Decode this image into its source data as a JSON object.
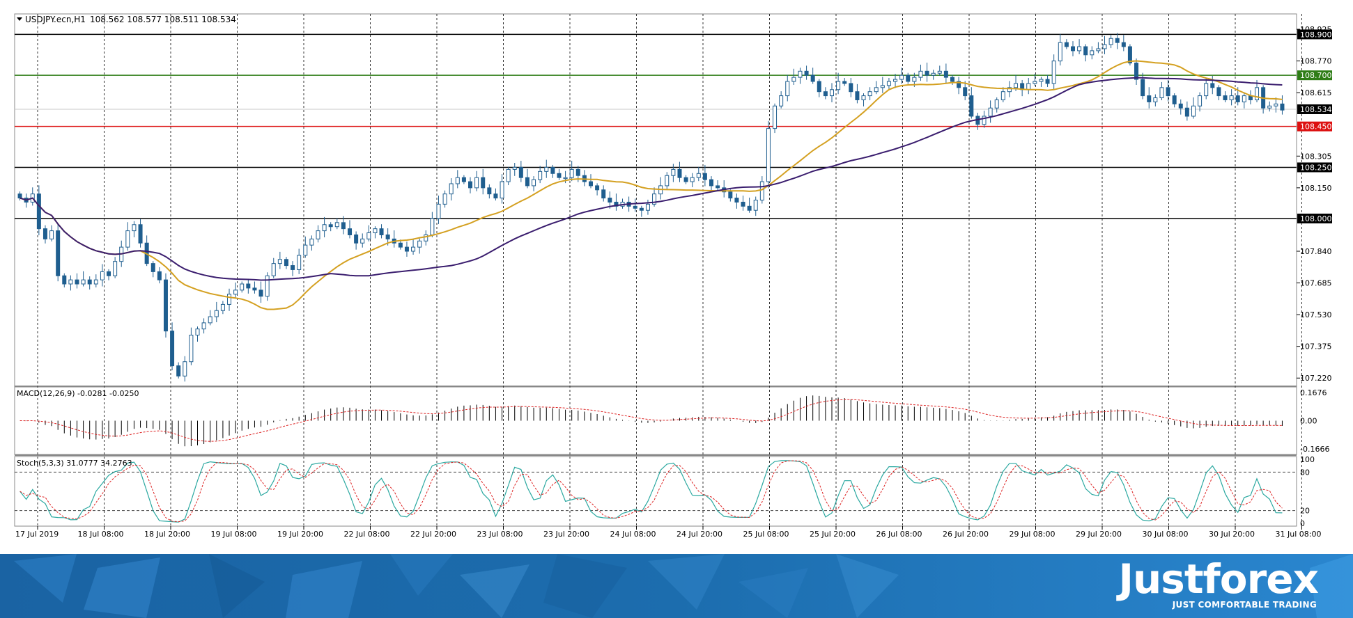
{
  "chart_data": {
    "type": "candlestick",
    "title": "USDJPY.ecn,H1",
    "ohlc_header": "108.562 108.577 108.511 108.534",
    "x_tick_labels": [
      "17 Jul 2019",
      "18 Jul 08:00",
      "18 Jul 20:00",
      "19 Jul 08:00",
      "19 Jul 20:00",
      "22 Jul 08:00",
      "22 Jul 20:00",
      "23 Jul 08:00",
      "23 Jul 20:00",
      "24 Jul 08:00",
      "24 Jul 20:00",
      "25 Jul 08:00",
      "25 Jul 20:00",
      "26 Jul 08:00",
      "26 Jul 20:00",
      "29 Jul 08:00",
      "29 Jul 20:00",
      "30 Jul 08:00",
      "30 Jul 20:00",
      "31 Jul 08:00"
    ],
    "y_tick_labels": [
      "108.925",
      "108.770",
      "108.615",
      "108.305",
      "108.150",
      "107.840",
      "107.685",
      "107.530",
      "107.375",
      "107.220"
    ],
    "ylim": [
      107.18,
      109.0
    ],
    "last_price": 108.534,
    "horizontal_levels": [
      {
        "value": 108.9,
        "label": "108.900",
        "color": "#000000"
      },
      {
        "value": 108.7,
        "label": "108.700",
        "color": "#2e7d16"
      },
      {
        "value": 108.45,
        "label": "108.450",
        "color": "#dd1111"
      },
      {
        "value": 108.25,
        "label": "108.250",
        "color": "#000000"
      },
      {
        "value": 108.0,
        "label": "108.000",
        "color": "#000000"
      }
    ],
    "last_price_label": "108.534",
    "closes": [
      108.1,
      108.08,
      108.12,
      107.95,
      107.9,
      107.94,
      107.72,
      107.68,
      107.7,
      107.68,
      107.7,
      107.68,
      107.7,
      107.74,
      107.72,
      107.79,
      107.86,
      107.94,
      107.97,
      107.88,
      107.78,
      107.74,
      107.7,
      107.45,
      107.28,
      107.23,
      107.3,
      107.43,
      107.46,
      107.49,
      107.52,
      107.55,
      107.58,
      107.63,
      107.65,
      107.68,
      107.66,
      107.65,
      107.62,
      107.72,
      107.78,
      107.8,
      107.77,
      107.75,
      107.82,
      107.87,
      107.9,
      107.94,
      107.97,
      107.96,
      107.98,
      107.95,
      107.92,
      107.88,
      107.9,
      107.93,
      107.95,
      107.92,
      107.9,
      107.88,
      107.86,
      107.84,
      107.86,
      107.89,
      107.92,
      108.0,
      108.07,
      108.12,
      108.17,
      108.2,
      108.18,
      108.15,
      108.2,
      108.15,
      108.12,
      108.1,
      108.18,
      108.24,
      108.25,
      108.2,
      108.16,
      108.19,
      108.23,
      108.25,
      108.22,
      108.2,
      108.2,
      108.24,
      108.21,
      108.18,
      108.16,
      108.14,
      108.1,
      108.08,
      108.06,
      108.08,
      108.06,
      108.05,
      108.04,
      108.07,
      108.12,
      108.16,
      108.21,
      108.24,
      108.2,
      108.18,
      108.2,
      108.22,
      108.19,
      108.16,
      108.15,
      108.13,
      108.1,
      108.08,
      108.06,
      108.04,
      108.09,
      108.18,
      108.44,
      108.55,
      108.6,
      108.67,
      108.69,
      108.72,
      108.7,
      108.67,
      108.62,
      108.6,
      108.63,
      108.67,
      108.66,
      108.62,
      108.58,
      108.6,
      108.62,
      108.64,
      108.65,
      108.67,
      108.68,
      108.7,
      108.67,
      108.69,
      108.72,
      108.7,
      108.71,
      108.72,
      108.69,
      108.67,
      108.64,
      108.6,
      108.5,
      108.46,
      108.5,
      108.54,
      108.58,
      108.62,
      108.64,
      108.66,
      108.63,
      108.66,
      108.67,
      108.68,
      108.66,
      108.77,
      108.86,
      108.84,
      108.82,
      108.84,
      108.8,
      108.82,
      108.83,
      108.85,
      108.88,
      108.86,
      108.84,
      108.76,
      108.68,
      108.6,
      108.57,
      108.59,
      108.64,
      108.6,
      108.56,
      108.54,
      108.5,
      108.55,
      108.6,
      108.66,
      108.64,
      108.6,
      108.58,
      108.6,
      108.57,
      108.6,
      108.58,
      108.64,
      108.54,
      108.55,
      108.56,
      108.53
    ],
    "ma_fast_endpoints": [
      108.13,
      108.67
    ],
    "ma_slow_endpoints": [
      108.12,
      108.6
    ],
    "macd": {
      "label": "MACD(12,26,9) -0.0281 -0.0250",
      "y_tick_labels": [
        "0.1676",
        "0.00",
        "-0.1666"
      ],
      "ylim": [
        -0.2,
        0.2
      ]
    },
    "stoch": {
      "label": "Stoch(5,3,3) 31.0777 34.2763",
      "y_tick_labels": [
        "100",
        "80",
        "20",
        "0"
      ],
      "levels": [
        80,
        20
      ]
    }
  },
  "brand": {
    "name": "Justforex",
    "tagline": "JUST COMFORTABLE TRADING",
    "primary_color": "#1e6fae",
    "accent_color": "#3b9be0"
  }
}
